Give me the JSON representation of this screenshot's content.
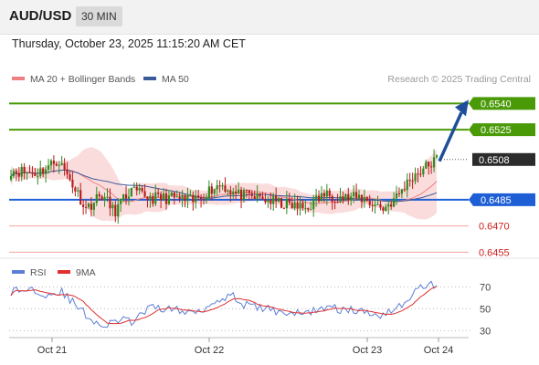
{
  "header": {
    "symbol": "AUD/USD",
    "timeframe": "30 MIN",
    "datetime": "Thursday, October 23, 2025 11:15:20 AM CET"
  },
  "colors": {
    "candle_up": "#2e8b1f",
    "candle_down": "#b71c1c",
    "bollinger_fill": "#fbdcdc",
    "ma20": "#f08080",
    "ma50": "#3a5a9a",
    "resistance": "#4a9a08",
    "pivot": "#1f5fd6",
    "support": "#f4a3a3",
    "current": "#2b2b2b",
    "arrow": "#1f4f9a",
    "rsi": "#5b7fd6",
    "rsi_ma": "#e03030"
  },
  "chart_data": [
    {
      "type": "candlestick",
      "legend": [
        {
          "name": "MA 20 + Bollinger Bands",
          "color": "#f08080"
        },
        {
          "name": "MA 50",
          "color": "#3a5a9a"
        }
      ],
      "legend_position": "top-left",
      "source": "Research © 2025 Trading Central",
      "x_ticks": [
        "Oct 21",
        "Oct 22",
        "Oct 23",
        "Oct 24"
      ],
      "ylim": [
        0.645,
        0.6547
      ],
      "levels": [
        {
          "value": 0.654,
          "label": "0.6540",
          "kind": "resistance"
        },
        {
          "value": 0.6525,
          "label": "0.6525",
          "kind": "resistance"
        },
        {
          "value": 0.6508,
          "label": "0.6508",
          "kind": "current"
        },
        {
          "value": 0.6485,
          "label": "0.6485",
          "kind": "pivot"
        },
        {
          "value": 0.647,
          "label": "0.6470",
          "kind": "support"
        },
        {
          "value": 0.6455,
          "label": "0.6455",
          "kind": "support"
        }
      ],
      "forecast_arrow": {
        "from": 0.6507,
        "to": 0.6539,
        "direction": "up"
      },
      "waypoints": [
        [
          0,
          0.6502
        ],
        [
          16,
          0.65
        ],
        [
          24,
          0.6504
        ],
        [
          30,
          0.6508
        ],
        [
          38,
          0.6496
        ],
        [
          48,
          0.648
        ],
        [
          58,
          0.6488
        ],
        [
          66,
          0.6478
        ],
        [
          76,
          0.649
        ],
        [
          90,
          0.6486
        ],
        [
          104,
          0.6486
        ],
        [
          116,
          0.6484
        ],
        [
          126,
          0.649
        ],
        [
          134,
          0.6494
        ],
        [
          144,
          0.6488
        ],
        [
          158,
          0.6486
        ],
        [
          172,
          0.6483
        ],
        [
          188,
          0.648
        ],
        [
          200,
          0.6488
        ],
        [
          214,
          0.6486
        ],
        [
          224,
          0.6486
        ],
        [
          238,
          0.648
        ],
        [
          246,
          0.6486
        ],
        [
          256,
          0.6498
        ],
        [
          264,
          0.6503
        ],
        [
          272,
          0.6508
        ]
      ]
    },
    {
      "type": "line",
      "legend": [
        {
          "name": "RSI",
          "color": "#5b7fd6"
        },
        {
          "name": "9MA",
          "color": "#e03030"
        }
      ],
      "y_ticks": [
        70,
        50,
        30
      ],
      "ylim": [
        22,
        82
      ],
      "rsi_waypoints": [
        [
          0,
          66
        ],
        [
          14,
          68
        ],
        [
          24,
          63
        ],
        [
          32,
          66
        ],
        [
          40,
          55
        ],
        [
          50,
          42
        ],
        [
          60,
          33
        ],
        [
          68,
          40
        ],
        [
          78,
          38
        ],
        [
          88,
          50
        ],
        [
          100,
          51
        ],
        [
          112,
          46
        ],
        [
          124,
          51
        ],
        [
          134,
          60
        ],
        [
          140,
          63
        ],
        [
          150,
          53
        ],
        [
          162,
          50
        ],
        [
          174,
          47
        ],
        [
          186,
          45
        ],
        [
          198,
          51
        ],
        [
          208,
          50
        ],
        [
          220,
          48
        ],
        [
          236,
          45
        ],
        [
          248,
          52
        ],
        [
          262,
          70
        ],
        [
          272,
          73
        ]
      ]
    }
  ]
}
